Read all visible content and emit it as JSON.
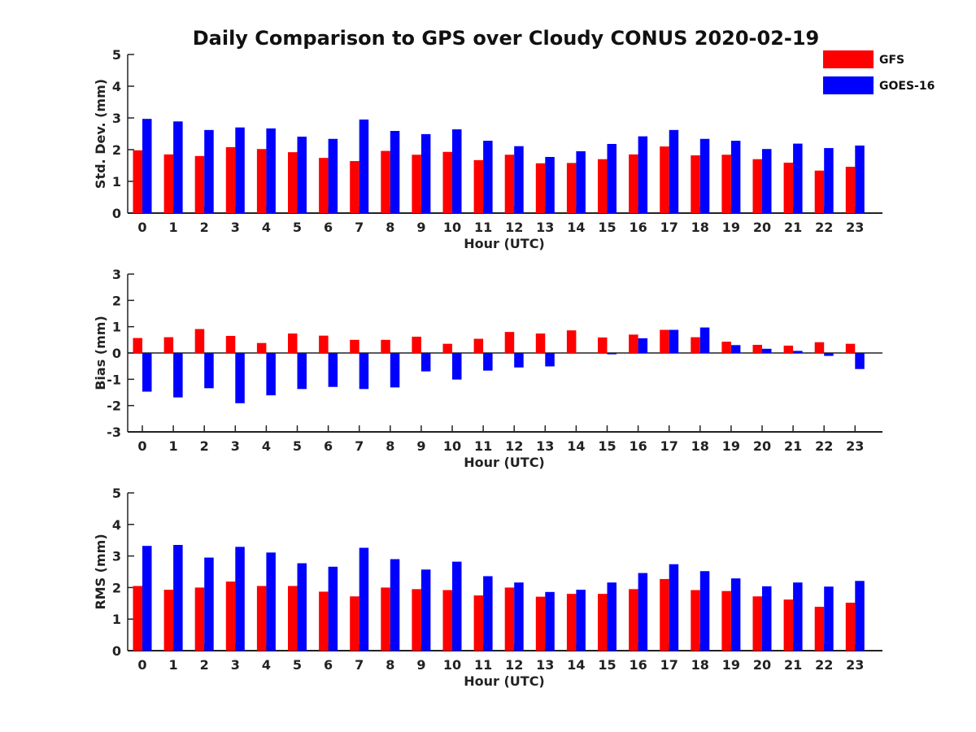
{
  "title": "Daily Comparison to GPS over Cloudy CONUS 2020-02-19",
  "legend": {
    "placement": "top-right",
    "entries": [
      {
        "label": "GFS",
        "color": "#ff0000"
      },
      {
        "label": "GOES-16",
        "color": "#0000ff"
      }
    ]
  },
  "chart_data": [
    {
      "type": "bar",
      "xlabel": "Hour (UTC)",
      "ylabel": "Std. Dev. (mm)",
      "ylim": [
        0,
        5
      ],
      "yticks": [
        0,
        1,
        2,
        3,
        4,
        5
      ],
      "categories": [
        0,
        1,
        2,
        3,
        4,
        5,
        6,
        7,
        8,
        9,
        10,
        11,
        12,
        13,
        14,
        15,
        16,
        17,
        18,
        19,
        20,
        21,
        22,
        23
      ],
      "series": [
        {
          "name": "GFS",
          "color": "#ff0000",
          "values": [
            1.98,
            1.85,
            1.8,
            2.08,
            2.02,
            1.92,
            1.74,
            1.64,
            1.96,
            1.84,
            1.93,
            1.67,
            1.84,
            1.57,
            1.58,
            1.7,
            1.85,
            2.1,
            1.82,
            1.84,
            1.7,
            1.59,
            1.34,
            1.46
          ]
        },
        {
          "name": "GOES-16",
          "color": "#0000ff",
          "values": [
            2.97,
            2.89,
            2.62,
            2.7,
            2.67,
            2.41,
            2.34,
            2.95,
            2.59,
            2.49,
            2.64,
            2.28,
            2.11,
            1.77,
            1.95,
            2.18,
            2.42,
            2.62,
            2.34,
            2.28,
            2.02,
            2.19,
            2.05,
            2.13
          ]
        }
      ]
    },
    {
      "type": "bar",
      "xlabel": "Hour (UTC)",
      "ylabel": "Bias (mm)",
      "ylim": [
        -3,
        3
      ],
      "yticks": [
        -3,
        -2,
        -1,
        0,
        1,
        2,
        3
      ],
      "categories": [
        0,
        1,
        2,
        3,
        4,
        5,
        6,
        7,
        8,
        9,
        10,
        11,
        12,
        13,
        14,
        15,
        16,
        17,
        18,
        19,
        20,
        21,
        22,
        23
      ],
      "series": [
        {
          "name": "GFS",
          "color": "#ff0000",
          "values": [
            0.57,
            0.6,
            0.91,
            0.65,
            0.38,
            0.74,
            0.66,
            0.5,
            0.5,
            0.62,
            0.35,
            0.54,
            0.8,
            0.74,
            0.86,
            0.59,
            0.7,
            0.88,
            0.6,
            0.43,
            0.31,
            0.28,
            0.41,
            0.35
          ]
        },
        {
          "name": "GOES-16",
          "color": "#0000ff",
          "values": [
            -1.47,
            -1.69,
            -1.34,
            -1.91,
            -1.61,
            -1.37,
            -1.29,
            -1.37,
            -1.31,
            -0.7,
            -1.01,
            -0.67,
            -0.55,
            -0.51,
            0.0,
            -0.05,
            0.56,
            0.88,
            0.97,
            0.3,
            0.16,
            0.08,
            -0.11,
            -0.61
          ]
        }
      ]
    },
    {
      "type": "bar",
      "xlabel": "Hour (UTC)",
      "ylabel": "RMS (mm)",
      "ylim": [
        0,
        5
      ],
      "yticks": [
        0,
        1,
        2,
        3,
        4,
        5
      ],
      "categories": [
        0,
        1,
        2,
        3,
        4,
        5,
        6,
        7,
        8,
        9,
        10,
        11,
        12,
        13,
        14,
        15,
        16,
        17,
        18,
        19,
        20,
        21,
        22,
        23
      ],
      "series": [
        {
          "name": "GFS",
          "color": "#ff0000",
          "values": [
            2.05,
            1.93,
            2.0,
            2.19,
            2.05,
            2.05,
            1.87,
            1.72,
            2.0,
            1.95,
            1.92,
            1.75,
            2.0,
            1.71,
            1.8,
            1.8,
            1.95,
            2.27,
            1.92,
            1.89,
            1.72,
            1.62,
            1.39,
            1.52
          ]
        },
        {
          "name": "GOES-16",
          "color": "#0000ff",
          "values": [
            3.32,
            3.35,
            2.95,
            3.29,
            3.11,
            2.77,
            2.66,
            3.26,
            2.9,
            2.57,
            2.82,
            2.36,
            2.16,
            1.86,
            1.93,
            2.16,
            2.46,
            2.74,
            2.52,
            2.29,
            2.04,
            2.16,
            2.03,
            2.21
          ]
        }
      ]
    }
  ]
}
